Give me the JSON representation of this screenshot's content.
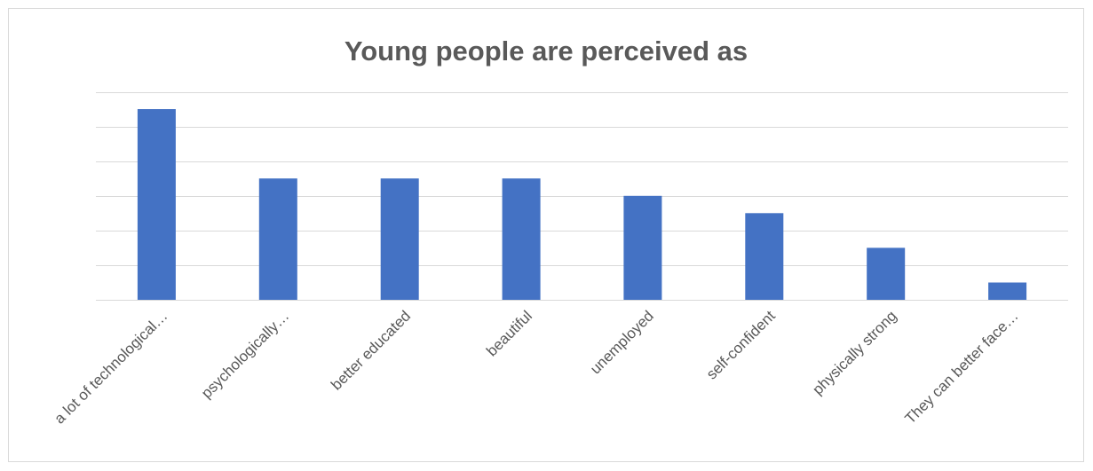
{
  "chart_data": {
    "type": "bar",
    "title": "Young people are perceived as",
    "categories": [
      "a lot of technological…",
      "psychologically…",
      "better educated",
      "beautiful",
      "unemployed",
      "self-confident",
      "physically strong",
      "They can better face…"
    ],
    "values": [
      11,
      7,
      7,
      7,
      6,
      5,
      3,
      1
    ],
    "ylim": [
      0,
      12
    ],
    "ytick_step": 2,
    "grid": true,
    "legend": "none",
    "bar_color": "#4472c4",
    "gridline_color": "#d9d9d9",
    "axis_color": "#d9d9d9",
    "text_color": "#595959"
  }
}
